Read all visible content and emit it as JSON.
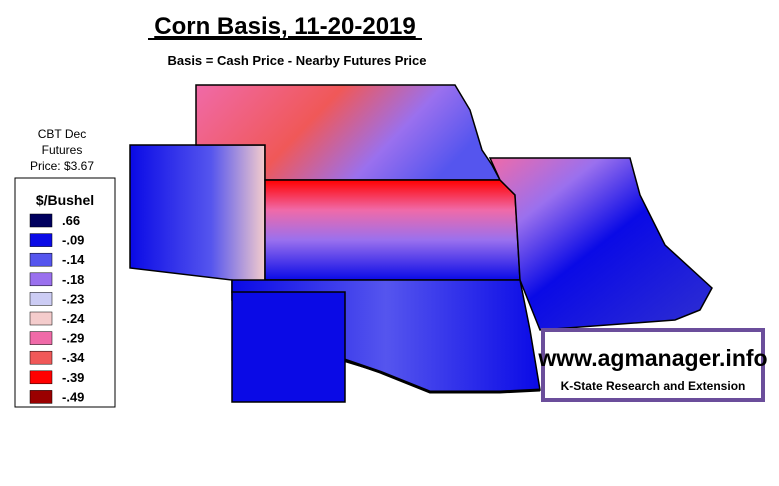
{
  "header": {
    "title": "Corn Basis, 11-20-2019",
    "subtitle": "Basis = Cash Price - Nearby Futures Price"
  },
  "futures_note": [
    "CBT Dec",
    "Futures",
    "Price: $3.67"
  ],
  "legend": {
    "title": "$/Bushel",
    "items": [
      {
        "label": ".66",
        "color": "#00005e"
      },
      {
        "label": "-.09",
        "color": "#0a0ae6"
      },
      {
        "label": "-.14",
        "color": "#5555ee"
      },
      {
        "label": "-.18",
        "color": "#9a70ee"
      },
      {
        "label": "-.23",
        "color": "#ccccf4"
      },
      {
        "label": "-.24",
        "color": "#f4cccc"
      },
      {
        "label": "-.29",
        "color": "#f06aa8"
      },
      {
        "label": "-.34",
        "color": "#f05858"
      },
      {
        "label": "-.39",
        "color": "#ff0000"
      },
      {
        "label": "-.49",
        "color": "#9a0000"
      }
    ]
  },
  "logo": {
    "url": "www.agmanager.info",
    "org": "K-State Research and Extension"
  }
}
